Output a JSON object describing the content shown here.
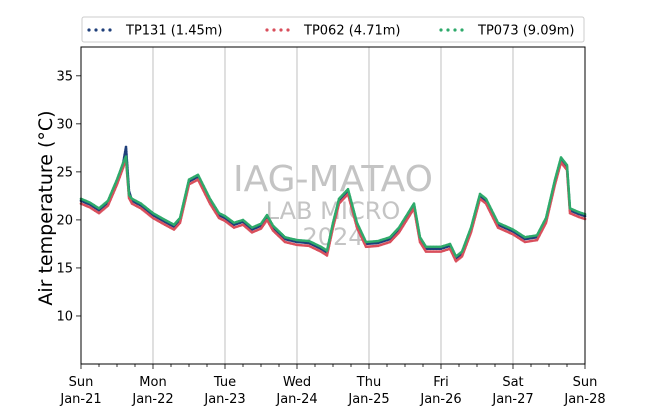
{
  "chart_data": {
    "type": "scatter",
    "title": "",
    "xlabel": "",
    "ylabel": "Air temperature (°C)",
    "xlim": [
      "2024-01-21 00:00",
      "2024-01-28 00:00"
    ],
    "ylim": [
      5,
      38
    ],
    "yticks": [
      10,
      15,
      20,
      25,
      30,
      35
    ],
    "xtick_labels": [
      {
        "day": "Sun",
        "date": "Jan-21"
      },
      {
        "day": "Mon",
        "date": "Jan-22"
      },
      {
        "day": "Tue",
        "date": "Jan-23"
      },
      {
        "day": "Wed",
        "date": "Jan-24"
      },
      {
        "day": "Thu",
        "date": "Jan-25"
      },
      {
        "day": "Fri",
        "date": "Jan-26"
      },
      {
        "day": "Sat",
        "date": "Jan-27"
      },
      {
        "day": "Sun",
        "date": "Jan-28"
      }
    ],
    "grid": "vertical at day boundaries",
    "legend_position": "top, above plot",
    "watermark": [
      "IAG-MATAO",
      "LAB MICRO",
      "2024"
    ],
    "series": [
      {
        "name": "TP131 (1.45m)",
        "color": "#1f3f7a",
        "points": [
          [
            "2024-01-21 00:00",
            22.0
          ],
          [
            "2024-01-21 03:00",
            21.6
          ],
          [
            "2024-01-21 06:00",
            21.0
          ],
          [
            "2024-01-21 09:00",
            21.8
          ],
          [
            "2024-01-21 12:00",
            24.0
          ],
          [
            "2024-01-21 14:00",
            25.8
          ],
          [
            "2024-01-21 15:00",
            27.6
          ],
          [
            "2024-01-21 16:00",
            23.0
          ],
          [
            "2024-01-21 17:00",
            22.0
          ],
          [
            "2024-01-21 20:00",
            21.5
          ],
          [
            "2024-01-22 00:00",
            20.5
          ],
          [
            "2024-01-22 04:00",
            19.8
          ],
          [
            "2024-01-22 07:00",
            19.3
          ],
          [
            "2024-01-22 09:00",
            20.0
          ],
          [
            "2024-01-22 12:00",
            24.0
          ],
          [
            "2024-01-22 15:00",
            24.5
          ],
          [
            "2024-01-22 19:00",
            22.0
          ],
          [
            "2024-01-22 22:00",
            20.5
          ],
          [
            "2024-01-23 00:00",
            20.2
          ],
          [
            "2024-01-23 03:00",
            19.5
          ],
          [
            "2024-01-23 06:00",
            19.8
          ],
          [
            "2024-01-23 09:00",
            19.0
          ],
          [
            "2024-01-23 12:00",
            19.4
          ],
          [
            "2024-01-23 14:00",
            20.3
          ],
          [
            "2024-01-23 16:00",
            19.2
          ],
          [
            "2024-01-23 20:00",
            18.0
          ],
          [
            "2024-01-24 00:00",
            17.7
          ],
          [
            "2024-01-24 04:00",
            17.6
          ],
          [
            "2024-01-24 08:00",
            17.0
          ],
          [
            "2024-01-24 10:00",
            16.6
          ],
          [
            "2024-01-24 12:00",
            19.5
          ],
          [
            "2024-01-24 14:00",
            22.0
          ],
          [
            "2024-01-24 17:00",
            23.0
          ],
          [
            "2024-01-24 20:00",
            19.5
          ],
          [
            "2024-01-24 23:00",
            17.5
          ],
          [
            "2024-01-25 03:00",
            17.6
          ],
          [
            "2024-01-25 07:00",
            18.0
          ],
          [
            "2024-01-25 10:00",
            19.0
          ],
          [
            "2024-01-25 13:00",
            20.5
          ],
          [
            "2024-01-25 15:00",
            21.5
          ],
          [
            "2024-01-25 17:00",
            18.0
          ],
          [
            "2024-01-25 19:00",
            17.0
          ],
          [
            "2024-01-26 00:00",
            17.0
          ],
          [
            "2024-01-26 03:00",
            17.3
          ],
          [
            "2024-01-26 05:00",
            16.0
          ],
          [
            "2024-01-26 07:00",
            16.5
          ],
          [
            "2024-01-26 10:00",
            19.0
          ],
          [
            "2024-01-26 13:00",
            22.5
          ],
          [
            "2024-01-26 15:00",
            22.0
          ],
          [
            "2024-01-26 19:00",
            19.5
          ],
          [
            "2024-01-27 00:00",
            18.8
          ],
          [
            "2024-01-27 04:00",
            18.0
          ],
          [
            "2024-01-27 08:00",
            18.2
          ],
          [
            "2024-01-27 11:00",
            20.0
          ],
          [
            "2024-01-27 14:00",
            24.0
          ],
          [
            "2024-01-27 16:00",
            26.3
          ],
          [
            "2024-01-27 18:00",
            25.5
          ],
          [
            "2024-01-27 19:00",
            21.0
          ],
          [
            "2024-01-27 22:00",
            20.6
          ],
          [
            "2024-01-28 00:00",
            20.4
          ]
        ]
      },
      {
        "name": "TP062 (4.71m)",
        "color": "#d94f5c",
        "points": [
          [
            "2024-01-21 00:00",
            21.7
          ],
          [
            "2024-01-21 03:00",
            21.3
          ],
          [
            "2024-01-21 06:00",
            20.7
          ],
          [
            "2024-01-21 09:00",
            21.5
          ],
          [
            "2024-01-21 12:00",
            23.7
          ],
          [
            "2024-01-21 14:00",
            25.4
          ],
          [
            "2024-01-21 15:00",
            26.3
          ],
          [
            "2024-01-21 16:00",
            22.3
          ],
          [
            "2024-01-21 17:00",
            21.7
          ],
          [
            "2024-01-21 20:00",
            21.2
          ],
          [
            "2024-01-22 00:00",
            20.2
          ],
          [
            "2024-01-22 04:00",
            19.5
          ],
          [
            "2024-01-22 07:00",
            19.0
          ],
          [
            "2024-01-22 09:00",
            19.7
          ],
          [
            "2024-01-22 12:00",
            23.7
          ],
          [
            "2024-01-22 15:00",
            24.2
          ],
          [
            "2024-01-22 19:00",
            21.7
          ],
          [
            "2024-01-22 22:00",
            20.2
          ],
          [
            "2024-01-23 00:00",
            19.9
          ],
          [
            "2024-01-23 03:00",
            19.2
          ],
          [
            "2024-01-23 06:00",
            19.5
          ],
          [
            "2024-01-23 09:00",
            18.7
          ],
          [
            "2024-01-23 12:00",
            19.1
          ],
          [
            "2024-01-23 14:00",
            20.0
          ],
          [
            "2024-01-23 16:00",
            18.9
          ],
          [
            "2024-01-23 20:00",
            17.7
          ],
          [
            "2024-01-24 00:00",
            17.4
          ],
          [
            "2024-01-24 04:00",
            17.3
          ],
          [
            "2024-01-24 08:00",
            16.7
          ],
          [
            "2024-01-24 10:00",
            16.3
          ],
          [
            "2024-01-24 12:00",
            19.2
          ],
          [
            "2024-01-24 14:00",
            21.7
          ],
          [
            "2024-01-24 17:00",
            22.7
          ],
          [
            "2024-01-24 20:00",
            19.2
          ],
          [
            "2024-01-24 23:00",
            17.2
          ],
          [
            "2024-01-25 03:00",
            17.3
          ],
          [
            "2024-01-25 07:00",
            17.7
          ],
          [
            "2024-01-25 10:00",
            18.7
          ],
          [
            "2024-01-25 13:00",
            20.2
          ],
          [
            "2024-01-25 15:00",
            21.2
          ],
          [
            "2024-01-25 17:00",
            17.7
          ],
          [
            "2024-01-25 19:00",
            16.7
          ],
          [
            "2024-01-26 00:00",
            16.7
          ],
          [
            "2024-01-26 03:00",
            17.0
          ],
          [
            "2024-01-26 05:00",
            15.7
          ],
          [
            "2024-01-26 07:00",
            16.2
          ],
          [
            "2024-01-26 10:00",
            18.7
          ],
          [
            "2024-01-26 13:00",
            22.2
          ],
          [
            "2024-01-26 15:00",
            21.7
          ],
          [
            "2024-01-26 19:00",
            19.2
          ],
          [
            "2024-01-27 00:00",
            18.5
          ],
          [
            "2024-01-27 04:00",
            17.7
          ],
          [
            "2024-01-27 08:00",
            17.9
          ],
          [
            "2024-01-27 11:00",
            19.7
          ],
          [
            "2024-01-27 14:00",
            23.7
          ],
          [
            "2024-01-27 16:00",
            26.0
          ],
          [
            "2024-01-27 18:00",
            25.2
          ],
          [
            "2024-01-27 19:00",
            20.7
          ],
          [
            "2024-01-27 22:00",
            20.3
          ],
          [
            "2024-01-28 00:00",
            20.1
          ]
        ]
      },
      {
        "name": "TP073 (9.09m)",
        "color": "#2eaa6b",
        "points": [
          [
            "2024-01-21 00:00",
            22.2
          ],
          [
            "2024-01-21 03:00",
            21.8
          ],
          [
            "2024-01-21 06:00",
            21.2
          ],
          [
            "2024-01-21 09:00",
            22.0
          ],
          [
            "2024-01-21 12:00",
            24.2
          ],
          [
            "2024-01-21 14:00",
            25.9
          ],
          [
            "2024-01-21 15:00",
            26.6
          ],
          [
            "2024-01-21 16:00",
            22.6
          ],
          [
            "2024-01-21 17:00",
            22.2
          ],
          [
            "2024-01-21 20:00",
            21.7
          ],
          [
            "2024-01-22 00:00",
            20.7
          ],
          [
            "2024-01-22 04:00",
            20.0
          ],
          [
            "2024-01-22 07:00",
            19.5
          ],
          [
            "2024-01-22 09:00",
            20.2
          ],
          [
            "2024-01-22 12:00",
            24.2
          ],
          [
            "2024-01-22 15:00",
            24.7
          ],
          [
            "2024-01-22 19:00",
            22.2
          ],
          [
            "2024-01-22 22:00",
            20.7
          ],
          [
            "2024-01-23 00:00",
            20.4
          ],
          [
            "2024-01-23 03:00",
            19.7
          ],
          [
            "2024-01-23 06:00",
            20.0
          ],
          [
            "2024-01-23 09:00",
            19.2
          ],
          [
            "2024-01-23 12:00",
            19.6
          ],
          [
            "2024-01-23 14:00",
            20.5
          ],
          [
            "2024-01-23 16:00",
            19.4
          ],
          [
            "2024-01-23 20:00",
            18.2
          ],
          [
            "2024-01-24 00:00",
            17.9
          ],
          [
            "2024-01-24 04:00",
            17.8
          ],
          [
            "2024-01-24 08:00",
            17.2
          ],
          [
            "2024-01-24 10:00",
            16.8
          ],
          [
            "2024-01-24 12:00",
            19.7
          ],
          [
            "2024-01-24 14:00",
            22.2
          ],
          [
            "2024-01-24 17:00",
            23.2
          ],
          [
            "2024-01-24 20:00",
            19.7
          ],
          [
            "2024-01-24 23:00",
            17.7
          ],
          [
            "2024-01-25 03:00",
            17.8
          ],
          [
            "2024-01-25 07:00",
            18.2
          ],
          [
            "2024-01-25 10:00",
            19.2
          ],
          [
            "2024-01-25 13:00",
            20.7
          ],
          [
            "2024-01-25 15:00",
            21.7
          ],
          [
            "2024-01-25 17:00",
            18.2
          ],
          [
            "2024-01-25 19:00",
            17.2
          ],
          [
            "2024-01-26 00:00",
            17.2
          ],
          [
            "2024-01-26 03:00",
            17.5
          ],
          [
            "2024-01-26 05:00",
            16.2
          ],
          [
            "2024-01-26 07:00",
            16.7
          ],
          [
            "2024-01-26 10:00",
            19.2
          ],
          [
            "2024-01-26 13:00",
            22.7
          ],
          [
            "2024-01-26 15:00",
            22.2
          ],
          [
            "2024-01-26 19:00",
            19.7
          ],
          [
            "2024-01-27 00:00",
            19.0
          ],
          [
            "2024-01-27 04:00",
            18.2
          ],
          [
            "2024-01-27 08:00",
            18.4
          ],
          [
            "2024-01-27 11:00",
            20.2
          ],
          [
            "2024-01-27 14:00",
            24.2
          ],
          [
            "2024-01-27 16:00",
            26.5
          ],
          [
            "2024-01-27 18:00",
            25.7
          ],
          [
            "2024-01-27 19:00",
            21.2
          ],
          [
            "2024-01-27 22:00",
            20.8
          ],
          [
            "2024-01-28 00:00",
            20.6
          ]
        ]
      }
    ]
  }
}
